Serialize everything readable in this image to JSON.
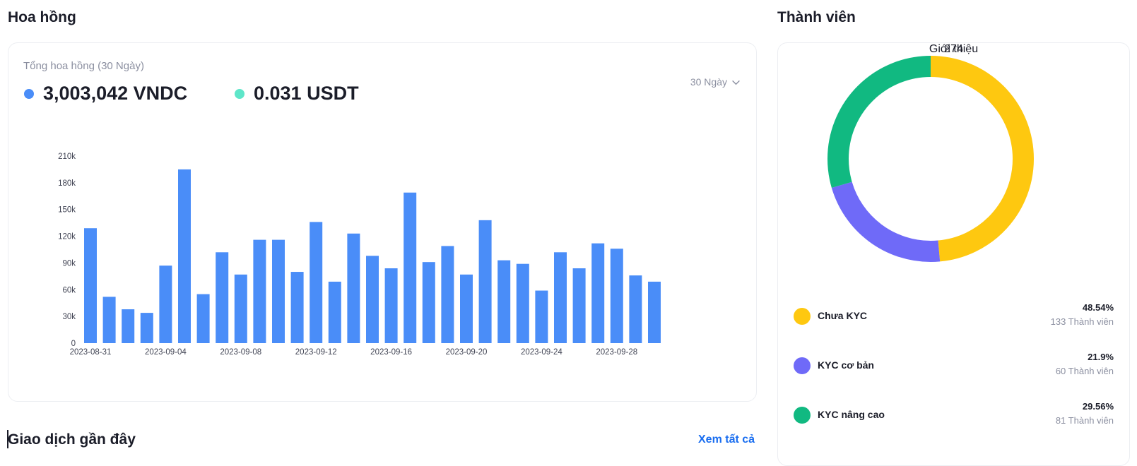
{
  "commission": {
    "title": "Hoa hồng",
    "subtitle": "Tổng hoa hồng (30 Ngày)",
    "total_vndc": "3,003,042 VNDC",
    "total_usdt": "0.031 USDT",
    "period": "30 Ngày",
    "vndc_color": "#4a8df8",
    "usdt_color": "#5ee6c9"
  },
  "members": {
    "title": "Thành viên",
    "center_label": "Giới thiệu",
    "center_value": "274",
    "items": [
      {
        "label": "Chưa KYC",
        "percent": "48.54%",
        "count": "133 Thành viên",
        "color": "#fec810"
      },
      {
        "label": "KYC cơ bản",
        "percent": "21.9%",
        "count": "60 Thành viên",
        "color": "#6f6af8"
      },
      {
        "label": "KYC nâng cao",
        "percent": "29.56%",
        "count": "81 Thành viên",
        "color": "#11b981"
      }
    ]
  },
  "recent": {
    "title": "Giao dịch gần đây",
    "see_all": "Xem tất cả"
  },
  "chart_data": {
    "type": "bar",
    "categories": [
      "2023-08-31",
      "2023-09-01",
      "2023-09-02",
      "2023-09-03",
      "2023-09-04",
      "2023-09-05",
      "2023-09-06",
      "2023-09-07",
      "2023-09-08",
      "2023-09-09",
      "2023-09-10",
      "2023-09-11",
      "2023-09-12",
      "2023-09-13",
      "2023-09-14",
      "2023-09-15",
      "2023-09-16",
      "2023-09-17",
      "2023-09-18",
      "2023-09-19",
      "2023-09-20",
      "2023-09-21",
      "2023-09-22",
      "2023-09-23",
      "2023-09-24",
      "2023-09-25",
      "2023-09-26",
      "2023-09-27",
      "2023-09-28",
      "2023-09-29",
      "2023-09-30"
    ],
    "x_tick_labels": [
      "2023-08-31",
      "2023-09-04",
      "2023-09-08",
      "2023-09-12",
      "2023-09-16",
      "2023-09-20",
      "2023-09-24",
      "2023-09-28"
    ],
    "values": [
      129000,
      52000,
      38000,
      34000,
      87000,
      195000,
      55000,
      102000,
      77000,
      116000,
      116000,
      80000,
      136000,
      69000,
      123000,
      98000,
      84000,
      169000,
      91000,
      109000,
      77000,
      138000,
      93000,
      89000,
      59000,
      102000,
      84000,
      112000,
      106000,
      76000,
      69000
    ],
    "y_ticks": [
      "0",
      "30k",
      "60k",
      "90k",
      "120k",
      "150k",
      "180k",
      "210k"
    ],
    "ylim": [
      0,
      210000
    ],
    "grid": false,
    "color": "#4a8df8",
    "title": "",
    "xlabel": "",
    "ylabel": ""
  }
}
